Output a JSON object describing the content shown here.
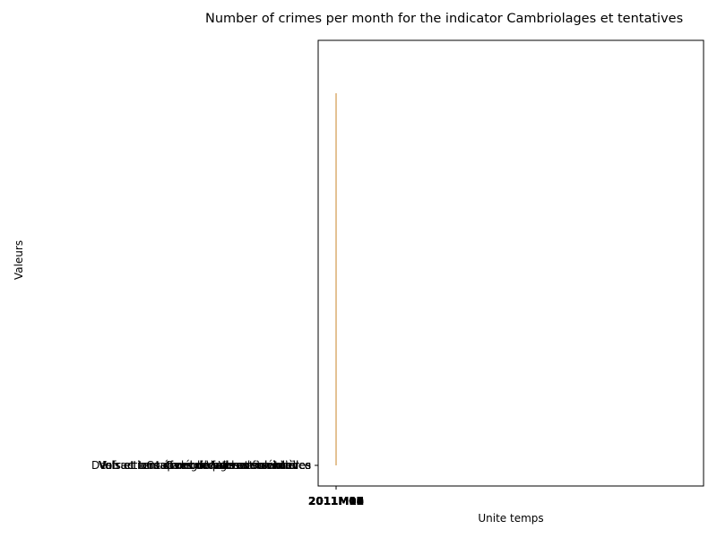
{
  "chart_data": {
    "type": "line",
    "title": "Number of crimes per month for the indicator Cambriolages et tentatives",
    "xlabel": "Unite temps",
    "ylabel": "Valeurs",
    "x_tick_labels": [
      "2011M01",
      "2011M02",
      "2011M03",
      "2011M04",
      "2011M05",
      "2011M06",
      "2011M07",
      "2011M08",
      "2011M09",
      "2011M10",
      "2011M11",
      "2011M12"
    ],
    "y_tick_labels": [
      "Vols et tentatives de vols avec violence",
      "Vols et tentatives de vols sans violence",
      "Cambriolages et tentatives",
      "Destructions et dégradations volontaires",
      "Infractions économiques et financières",
      "Vols de véhicules",
      "Coups et blessures volontaires",
      "Violences sexuelles"
    ],
    "series": [
      {
        "color": "#c8862a",
        "x": [
          "2011M01",
          "2011M01"
        ],
        "y": [
          0,
          1
        ]
      }
    ],
    "grid": false
  }
}
